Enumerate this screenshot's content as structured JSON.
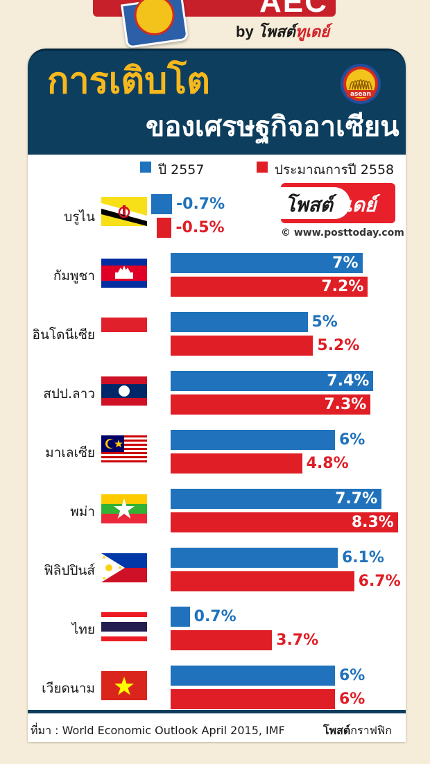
{
  "banner": {
    "badge_text": "AEC",
    "by": "by",
    "brand_a": "โพสต์",
    "brand_b": "ทูเดย์"
  },
  "header": {
    "title_line1": "การเติบโต",
    "title_line2": "ของเศรษฐกิจอาเซียน",
    "logo_text": "asean"
  },
  "colors": {
    "series_2557": "#1f72bb",
    "series_2558": "#e01e26",
    "header_bg": "#0e3e5e",
    "title_accent": "#f6b81c"
  },
  "chart_data": {
    "type": "bar",
    "orientation": "horizontal",
    "title": "การเติบโตของเศรษฐกิจอาเซียน",
    "legend_placement": "top",
    "categories": [
      "บรูไน",
      "กัมพูชา",
      "อินโดนีเซีย",
      "สปป.ลาว",
      "มาเลเซีย",
      "พม่า",
      "ฟิลิปปินส์",
      "ไทย",
      "เวียดนาม"
    ],
    "series": [
      {
        "name": "ปี 2557",
        "values": [
          -0.7,
          7,
          5,
          7.4,
          6,
          7.7,
          6.1,
          0.7,
          6
        ],
        "labels": [
          "-0.7%",
          "7%",
          "5%",
          "7.4%",
          "6%",
          "7.7%",
          "6.1%",
          "0.7%",
          "6%"
        ]
      },
      {
        "name": "ประมาณการปี 2558",
        "values": [
          -0.5,
          7.2,
          5.2,
          7.3,
          4.8,
          8.3,
          6.7,
          3.7,
          6
        ],
        "labels": [
          "-0.5%",
          "7.2%",
          "5.2%",
          "7.3%",
          "4.8%",
          "8.3%",
          "6.7%",
          "3.7%",
          "6%"
        ]
      }
    ],
    "flags": [
      "brunei-flag-icon",
      "cambodia-flag-icon",
      "indonesia-flag-icon",
      "laos-flag-icon",
      "malaysia-flag-icon",
      "myanmar-flag-icon",
      "philippines-flag-icon",
      "thailand-flag-icon",
      "vietnam-flag-icon"
    ]
  },
  "watermark": {
    "brand_a": "โพสต์",
    "brand_b": "ทูเดย์",
    "url": "© www.posttoday.com"
  },
  "footer": {
    "source": "ที่มา : World Economic Outlook April 2015, IMF",
    "credit_bold": "โพสต์",
    "credit_rest": "กราฟฟิก"
  }
}
